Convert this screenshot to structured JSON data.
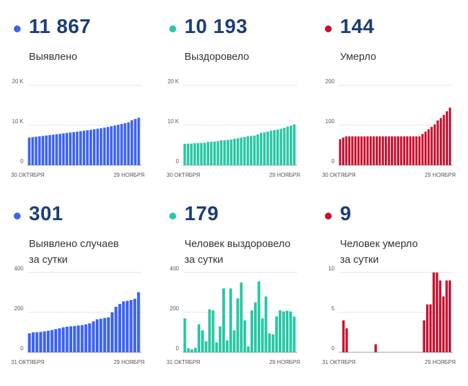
{
  "colors": {
    "blue": "#3d63f2",
    "teal": "#27c7a5",
    "red": "#c8102e",
    "number": "#1c3d7a"
  },
  "panels": [
    {
      "id": "cases-total",
      "number": "11 867",
      "label_lines": [
        "Выявлено"
      ],
      "color": "#3d63f2"
    },
    {
      "id": "recovered-total",
      "number": "10 193",
      "label_lines": [
        "Выздоровело"
      ],
      "color": "#27c7a5"
    },
    {
      "id": "deaths-total",
      "number": "144",
      "label_lines": [
        "Умерло"
      ],
      "color": "#c8102e"
    },
    {
      "id": "cases-daily",
      "number": "301",
      "label_lines": [
        "Выявлено случаев",
        "за сутки"
      ],
      "color": "#3d63f2"
    },
    {
      "id": "recovered-daily",
      "number": "179",
      "label_lines": [
        "Человек выздоровело",
        "за сутки"
      ],
      "color": "#27c7a5"
    },
    {
      "id": "deaths-daily",
      "number": "9",
      "label_lines": [
        "Человек умерло",
        "за сутки"
      ],
      "color": "#c8102e"
    }
  ],
  "chart_data": [
    {
      "type": "bar",
      "panel": "cases-total",
      "color": "#3d63f2",
      "ylim": [
        0,
        20000
      ],
      "y_ticks": [
        0,
        10000,
        20000
      ],
      "y_tick_labels": [
        "0",
        "10 K",
        "20 K"
      ],
      "x_start_label": "30 ОКТЯБРЯ",
      "x_end_label": "29 НОЯБРЯ",
      "values": [
        6900,
        7020,
        7120,
        7220,
        7330,
        7440,
        7540,
        7640,
        7740,
        7850,
        7960,
        8070,
        8180,
        8290,
        8400,
        8510,
        8620,
        8740,
        8860,
        8990,
        9120,
        9260,
        9410,
        9570,
        9740,
        9920,
        10110,
        10310,
        10520,
        10740,
        11250,
        11570,
        11867
      ]
    },
    {
      "type": "bar",
      "panel": "recovered-total",
      "color": "#27c7a5",
      "ylim": [
        0,
        20000
      ],
      "y_ticks": [
        0,
        10000,
        20000
      ],
      "y_tick_labels": [
        "0",
        "10 K",
        "20 K"
      ],
      "x_start_label": "30 ОКТЯБРЯ",
      "x_end_label": "29 НОЯБРЯ",
      "values": [
        5350,
        5380,
        5400,
        5520,
        5540,
        5560,
        5600,
        5830,
        5880,
        5900,
        6030,
        6230,
        6250,
        6350,
        6410,
        6620,
        6730,
        6900,
        7050,
        7230,
        7330,
        7380,
        7700,
        8080,
        8230,
        8410,
        8640,
        8760,
        8890,
        9100,
        9330,
        9640,
        9870,
        10193
      ]
    },
    {
      "type": "bar",
      "panel": "deaths-total",
      "color": "#c8102e",
      "ylim": [
        0,
        200
      ],
      "y_ticks": [
        0,
        100,
        200
      ],
      "y_tick_labels": [
        "0",
        "100",
        "200"
      ],
      "x_start_label": "30 ОКТЯБРЯ",
      "x_end_label": "29 НОЯБРЯ",
      "values": [
        65,
        69,
        72,
        72,
        72,
        72,
        72,
        72,
        72,
        72,
        72,
        72,
        72,
        72,
        72,
        72,
        72,
        72,
        72,
        72,
        72,
        72,
        72,
        72,
        72,
        72,
        72,
        78,
        84,
        90,
        96,
        102,
        112,
        118,
        126,
        135,
        144
      ]
    },
    {
      "type": "bar",
      "panel": "cases-daily",
      "color": "#3d63f2",
      "ylim": [
        0,
        400
      ],
      "y_ticks": [
        0,
        200,
        400
      ],
      "y_tick_labels": [
        "0",
        "200",
        "400"
      ],
      "x_start_label": "31 ОКТЯБРЯ",
      "x_end_label": "29 НОЯБРЯ",
      "values": [
        95,
        100,
        100,
        102,
        105,
        108,
        112,
        116,
        120,
        125,
        128,
        130,
        132,
        134,
        136,
        140,
        145,
        155,
        165,
        168,
        172,
        175,
        200,
        228,
        242,
        255,
        258,
        262,
        268,
        301
      ]
    },
    {
      "type": "bar",
      "panel": "recovered-daily",
      "color": "#27c7a5",
      "ylim": [
        0,
        400
      ],
      "y_ticks": [
        0,
        200,
        400
      ],
      "y_tick_labels": [
        "0",
        "200",
        "400"
      ],
      "x_start_label": "31 ОКТЯБРЯ",
      "x_end_label": "29 НОЯБРЯ",
      "values": [
        170,
        20,
        15,
        22,
        140,
        110,
        55,
        215,
        210,
        50,
        130,
        320,
        60,
        320,
        110,
        270,
        350,
        160,
        30,
        210,
        250,
        355,
        170,
        280,
        95,
        90,
        180,
        210,
        205,
        208,
        205,
        179
      ]
    },
    {
      "type": "bar",
      "panel": "deaths-daily",
      "color": "#c8102e",
      "ylim": [
        0,
        10
      ],
      "y_ticks": [
        0,
        5,
        10
      ],
      "y_tick_labels": [
        "0",
        "5",
        "10"
      ],
      "x_start_label": "31 ОКТЯБРЯ",
      "x_end_label": "29 НОЯБРЯ",
      "values": [
        0,
        4,
        3,
        0,
        0,
        0,
        0,
        0,
        0,
        0,
        0,
        1,
        0,
        0,
        0,
        0,
        0,
        0,
        0,
        0,
        0,
        0,
        0,
        0,
        0,
        0,
        4,
        6,
        6,
        10,
        10,
        9,
        7,
        9,
        9
      ]
    }
  ]
}
